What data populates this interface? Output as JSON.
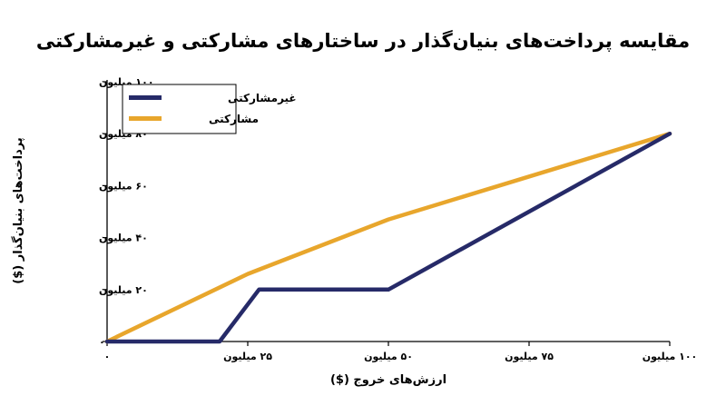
{
  "chart_data": {
    "type": "line",
    "title": "مقایسه پرداخت‌های بنیان‌گذار در ساختارهای مشارکتی و غیرمشارکتی",
    "xlabel": "ارزش‌های خروج ($)",
    "ylabel": "پرداخت‌های بنیان‌گذار ($)",
    "xlim": [
      0,
      100
    ],
    "ylim": [
      0,
      100
    ],
    "x_ticks": [
      {
        "value": 0,
        "label": "۰"
      },
      {
        "value": 25,
        "label": "۲۵ میلیون"
      },
      {
        "value": 50,
        "label": "۵۰ میلیون"
      },
      {
        "value": 75,
        "label": "۷۵ میلیون"
      },
      {
        "value": 100,
        "label": "۱۰۰ میلیون"
      }
    ],
    "y_ticks": [
      {
        "value": 0,
        "label": "۰"
      },
      {
        "value": 20,
        "label": "۲۰ میلیون"
      },
      {
        "value": 40,
        "label": "۴۰ میلیون"
      },
      {
        "value": 60,
        "label": "۶۰ میلیون"
      },
      {
        "value": 80,
        "label": "۸۰ میلیون"
      },
      {
        "value": 100,
        "label": "۱۰۰ میلیون"
      }
    ],
    "grid": false,
    "legend_position": "top-left",
    "series": [
      {
        "name": "غیرمشارکتی",
        "color": "#262a68",
        "points": [
          [
            0,
            0
          ],
          [
            20,
            0
          ],
          [
            27,
            20
          ],
          [
            50,
            20
          ],
          [
            100,
            80
          ]
        ]
      },
      {
        "name": "مشارکتی",
        "color": "#e8a62c",
        "points": [
          [
            0,
            0
          ],
          [
            25,
            26
          ],
          [
            50,
            47
          ],
          [
            100,
            80
          ]
        ]
      }
    ]
  }
}
